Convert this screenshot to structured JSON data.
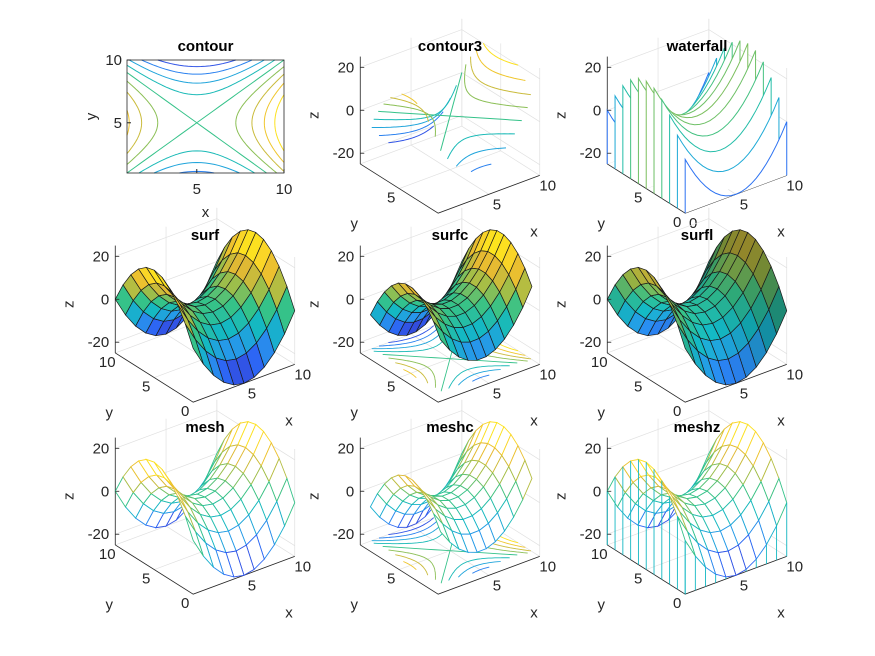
{
  "figure": {
    "background": "#ffffff"
  },
  "chart_data": [
    {
      "type": "contour",
      "title": "contour",
      "xlabel": "x",
      "ylabel": "y",
      "xticks": [
        5,
        10
      ],
      "yticks": [
        5,
        10
      ],
      "xlim": [
        1,
        10
      ],
      "ylim": [
        1,
        10
      ],
      "grid": false,
      "box": true
    },
    {
      "type": "contour3",
      "title": "contour3",
      "xlabel": "x",
      "ylabel": "y",
      "zlabel": "z",
      "xticks": [
        5,
        10
      ],
      "yticks": [
        5
      ],
      "zticks": [
        20,
        0,
        -20
      ],
      "xlim": [
        1,
        10
      ],
      "ylim": [
        1,
        10
      ],
      "zlim": [
        -25,
        25
      ],
      "grid": true,
      "box": true
    },
    {
      "type": "waterfall",
      "title": "waterfall",
      "xlabel": "x",
      "ylabel": "y",
      "zlabel": "z",
      "xticks": [
        0,
        5,
        10
      ],
      "yticks": [
        5,
        0
      ],
      "zticks": [
        20,
        0,
        -20
      ],
      "xlim": [
        0,
        10
      ],
      "ylim": [
        0,
        10
      ],
      "zlim": [
        -25,
        25
      ],
      "grid": true
    },
    {
      "type": "surf",
      "title": "surf",
      "xlabel": "x",
      "ylabel": "y",
      "zlabel": "z",
      "xticks": [
        5,
        10
      ],
      "yticks": [
        10,
        5,
        0
      ],
      "zticks": [
        20,
        0,
        -20
      ],
      "xlim": [
        0,
        10
      ],
      "ylim": [
        0,
        10
      ],
      "zlim": [
        -25,
        25
      ],
      "grid": true
    },
    {
      "type": "surfc",
      "title": "surfc",
      "xlabel": "x",
      "ylabel": "y",
      "zlabel": "z",
      "xticks": [
        5,
        10
      ],
      "yticks": [
        5
      ],
      "zticks": [
        20,
        0,
        -20
      ],
      "xlim": [
        1,
        10
      ],
      "ylim": [
        1,
        10
      ],
      "zlim": [
        -25,
        25
      ],
      "grid": true
    },
    {
      "type": "surfl",
      "title": "surfl",
      "xlabel": "x",
      "ylabel": "y",
      "zlabel": "z",
      "xticks": [
        5,
        10
      ],
      "yticks": [
        10,
        5,
        0
      ],
      "zticks": [
        20,
        0,
        -20
      ],
      "xlim": [
        0,
        10
      ],
      "ylim": [
        0,
        10
      ],
      "zlim": [
        -25,
        25
      ],
      "grid": true
    },
    {
      "type": "mesh",
      "title": "mesh",
      "xlabel": "x",
      "ylabel": "y",
      "zlabel": "z",
      "xticks": [
        5,
        10
      ],
      "yticks": [
        10,
        5,
        0
      ],
      "zticks": [
        20,
        0,
        -20
      ],
      "xlim": [
        0,
        10
      ],
      "ylim": [
        0,
        10
      ],
      "zlim": [
        -25,
        25
      ],
      "grid": true
    },
    {
      "type": "meshc",
      "title": "meshc",
      "xlabel": "x",
      "ylabel": "y",
      "zlabel": "z",
      "xticks": [
        5,
        10
      ],
      "yticks": [
        5
      ],
      "zticks": [
        20,
        0,
        -20
      ],
      "xlim": [
        1,
        10
      ],
      "ylim": [
        1,
        10
      ],
      "zlim": [
        -25,
        25
      ],
      "grid": true
    },
    {
      "type": "meshz",
      "title": "meshz",
      "xlabel": "x",
      "ylabel": "y",
      "zlabel": "z",
      "xticks": [
        5,
        10
      ],
      "yticks": [
        10,
        5,
        0
      ],
      "zticks": [
        20,
        0,
        -20
      ],
      "xlim": [
        0,
        10
      ],
      "ylim": [
        0,
        10
      ],
      "zlim": [
        -25,
        25
      ],
      "grid": true
    }
  ],
  "colormap": [
    "#3e26a8",
    "#2e5ff5",
    "#2797eb",
    "#14b8c3",
    "#35c289",
    "#a0be48",
    "#e6b932",
    "#fdda25",
    "#f9fb0e"
  ]
}
